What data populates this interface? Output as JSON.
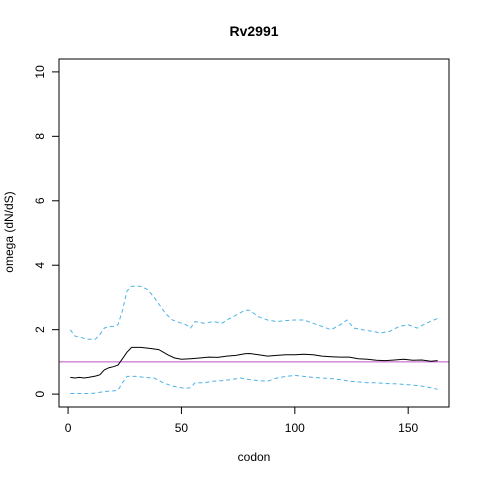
{
  "chart_data": {
    "type": "line",
    "title": "Rv2991",
    "xlabel": "codon",
    "ylabel": "omega (dN/dS)",
    "xlim": [
      -4,
      168
    ],
    "ylim": [
      -0.4,
      10.4
    ],
    "x_ticks": [
      0,
      50,
      100,
      150
    ],
    "y_ticks": [
      0,
      2,
      4,
      6,
      8,
      10
    ],
    "reference_line": {
      "y": 1.0,
      "color": "#C050C8"
    },
    "series": [
      {
        "style": "solid",
        "color": "#000000",
        "points": [
          [
            1,
            0.52
          ],
          [
            3,
            0.5
          ],
          [
            5,
            0.52
          ],
          [
            7,
            0.5
          ],
          [
            9,
            0.52
          ],
          [
            12,
            0.56
          ],
          [
            14,
            0.6
          ],
          [
            16,
            0.75
          ],
          [
            18,
            0.82
          ],
          [
            20,
            0.85
          ],
          [
            22,
            0.9
          ],
          [
            24,
            1.1
          ],
          [
            26,
            1.3
          ],
          [
            28,
            1.45
          ],
          [
            32,
            1.45
          ],
          [
            36,
            1.42
          ],
          [
            40,
            1.38
          ],
          [
            44,
            1.22
          ],
          [
            47,
            1.12
          ],
          [
            50,
            1.08
          ],
          [
            54,
            1.1
          ],
          [
            58,
            1.12
          ],
          [
            62,
            1.15
          ],
          [
            66,
            1.14
          ],
          [
            70,
            1.18
          ],
          [
            74,
            1.2
          ],
          [
            78,
            1.25
          ],
          [
            80,
            1.26
          ],
          [
            84,
            1.22
          ],
          [
            88,
            1.18
          ],
          [
            92,
            1.2
          ],
          [
            96,
            1.22
          ],
          [
            100,
            1.22
          ],
          [
            104,
            1.24
          ],
          [
            108,
            1.22
          ],
          [
            112,
            1.18
          ],
          [
            116,
            1.16
          ],
          [
            120,
            1.15
          ],
          [
            124,
            1.15
          ],
          [
            128,
            1.1
          ],
          [
            132,
            1.08
          ],
          [
            136,
            1.05
          ],
          [
            140,
            1.04
          ],
          [
            144,
            1.06
          ],
          [
            148,
            1.08
          ],
          [
            152,
            1.05
          ],
          [
            156,
            1.06
          ],
          [
            160,
            1.02
          ],
          [
            163,
            1.04
          ]
        ]
      },
      {
        "style": "dashed",
        "color": "#4DB3E6",
        "points": [
          [
            1,
            2.0
          ],
          [
            3,
            1.8
          ],
          [
            6,
            1.75
          ],
          [
            9,
            1.7
          ],
          [
            12,
            1.7
          ],
          [
            14,
            1.85
          ],
          [
            16,
            2.05
          ],
          [
            18,
            2.1
          ],
          [
            20,
            2.1
          ],
          [
            22,
            2.15
          ],
          [
            24,
            2.6
          ],
          [
            26,
            3.2
          ],
          [
            28,
            3.35
          ],
          [
            32,
            3.35
          ],
          [
            35,
            3.25
          ],
          [
            38,
            3.0
          ],
          [
            40,
            2.8
          ],
          [
            43,
            2.5
          ],
          [
            46,
            2.3
          ],
          [
            50,
            2.2
          ],
          [
            52,
            2.15
          ],
          [
            54,
            2.05
          ],
          [
            56,
            2.25
          ],
          [
            60,
            2.2
          ],
          [
            64,
            2.25
          ],
          [
            68,
            2.2
          ],
          [
            70,
            2.3
          ],
          [
            74,
            2.45
          ],
          [
            78,
            2.6
          ],
          [
            80,
            2.6
          ],
          [
            84,
            2.4
          ],
          [
            88,
            2.3
          ],
          [
            92,
            2.25
          ],
          [
            96,
            2.28
          ],
          [
            100,
            2.3
          ],
          [
            104,
            2.3
          ],
          [
            108,
            2.2
          ],
          [
            112,
            2.1
          ],
          [
            116,
            2.0
          ],
          [
            120,
            2.15
          ],
          [
            123,
            2.3
          ],
          [
            126,
            2.05
          ],
          [
            130,
            2.0
          ],
          [
            134,
            1.95
          ],
          [
            138,
            1.9
          ],
          [
            142,
            1.95
          ],
          [
            146,
            2.1
          ],
          [
            150,
            2.15
          ],
          [
            154,
            2.05
          ],
          [
            158,
            2.2
          ],
          [
            163,
            2.35
          ]
        ]
      },
      {
        "style": "dashed",
        "color": "#4DB3E6",
        "points": [
          [
            1,
            0.02
          ],
          [
            5,
            0.02
          ],
          [
            9,
            0.02
          ],
          [
            12,
            0.03
          ],
          [
            16,
            0.08
          ],
          [
            20,
            0.1
          ],
          [
            22,
            0.12
          ],
          [
            24,
            0.35
          ],
          [
            26,
            0.55
          ],
          [
            30,
            0.55
          ],
          [
            34,
            0.52
          ],
          [
            38,
            0.5
          ],
          [
            42,
            0.35
          ],
          [
            46,
            0.25
          ],
          [
            50,
            0.2
          ],
          [
            52,
            0.18
          ],
          [
            54,
            0.2
          ],
          [
            56,
            0.35
          ],
          [
            60,
            0.35
          ],
          [
            64,
            0.4
          ],
          [
            68,
            0.42
          ],
          [
            72,
            0.45
          ],
          [
            76,
            0.5
          ],
          [
            80,
            0.45
          ],
          [
            84,
            0.42
          ],
          [
            88,
            0.4
          ],
          [
            92,
            0.5
          ],
          [
            96,
            0.55
          ],
          [
            100,
            0.58
          ],
          [
            104,
            0.55
          ],
          [
            108,
            0.52
          ],
          [
            112,
            0.5
          ],
          [
            116,
            0.48
          ],
          [
            120,
            0.45
          ],
          [
            124,
            0.4
          ],
          [
            128,
            0.38
          ],
          [
            132,
            0.35
          ],
          [
            136,
            0.35
          ],
          [
            140,
            0.33
          ],
          [
            144,
            0.32
          ],
          [
            148,
            0.3
          ],
          [
            152,
            0.28
          ],
          [
            156,
            0.25
          ],
          [
            160,
            0.2
          ],
          [
            163,
            0.15
          ]
        ]
      }
    ]
  }
}
